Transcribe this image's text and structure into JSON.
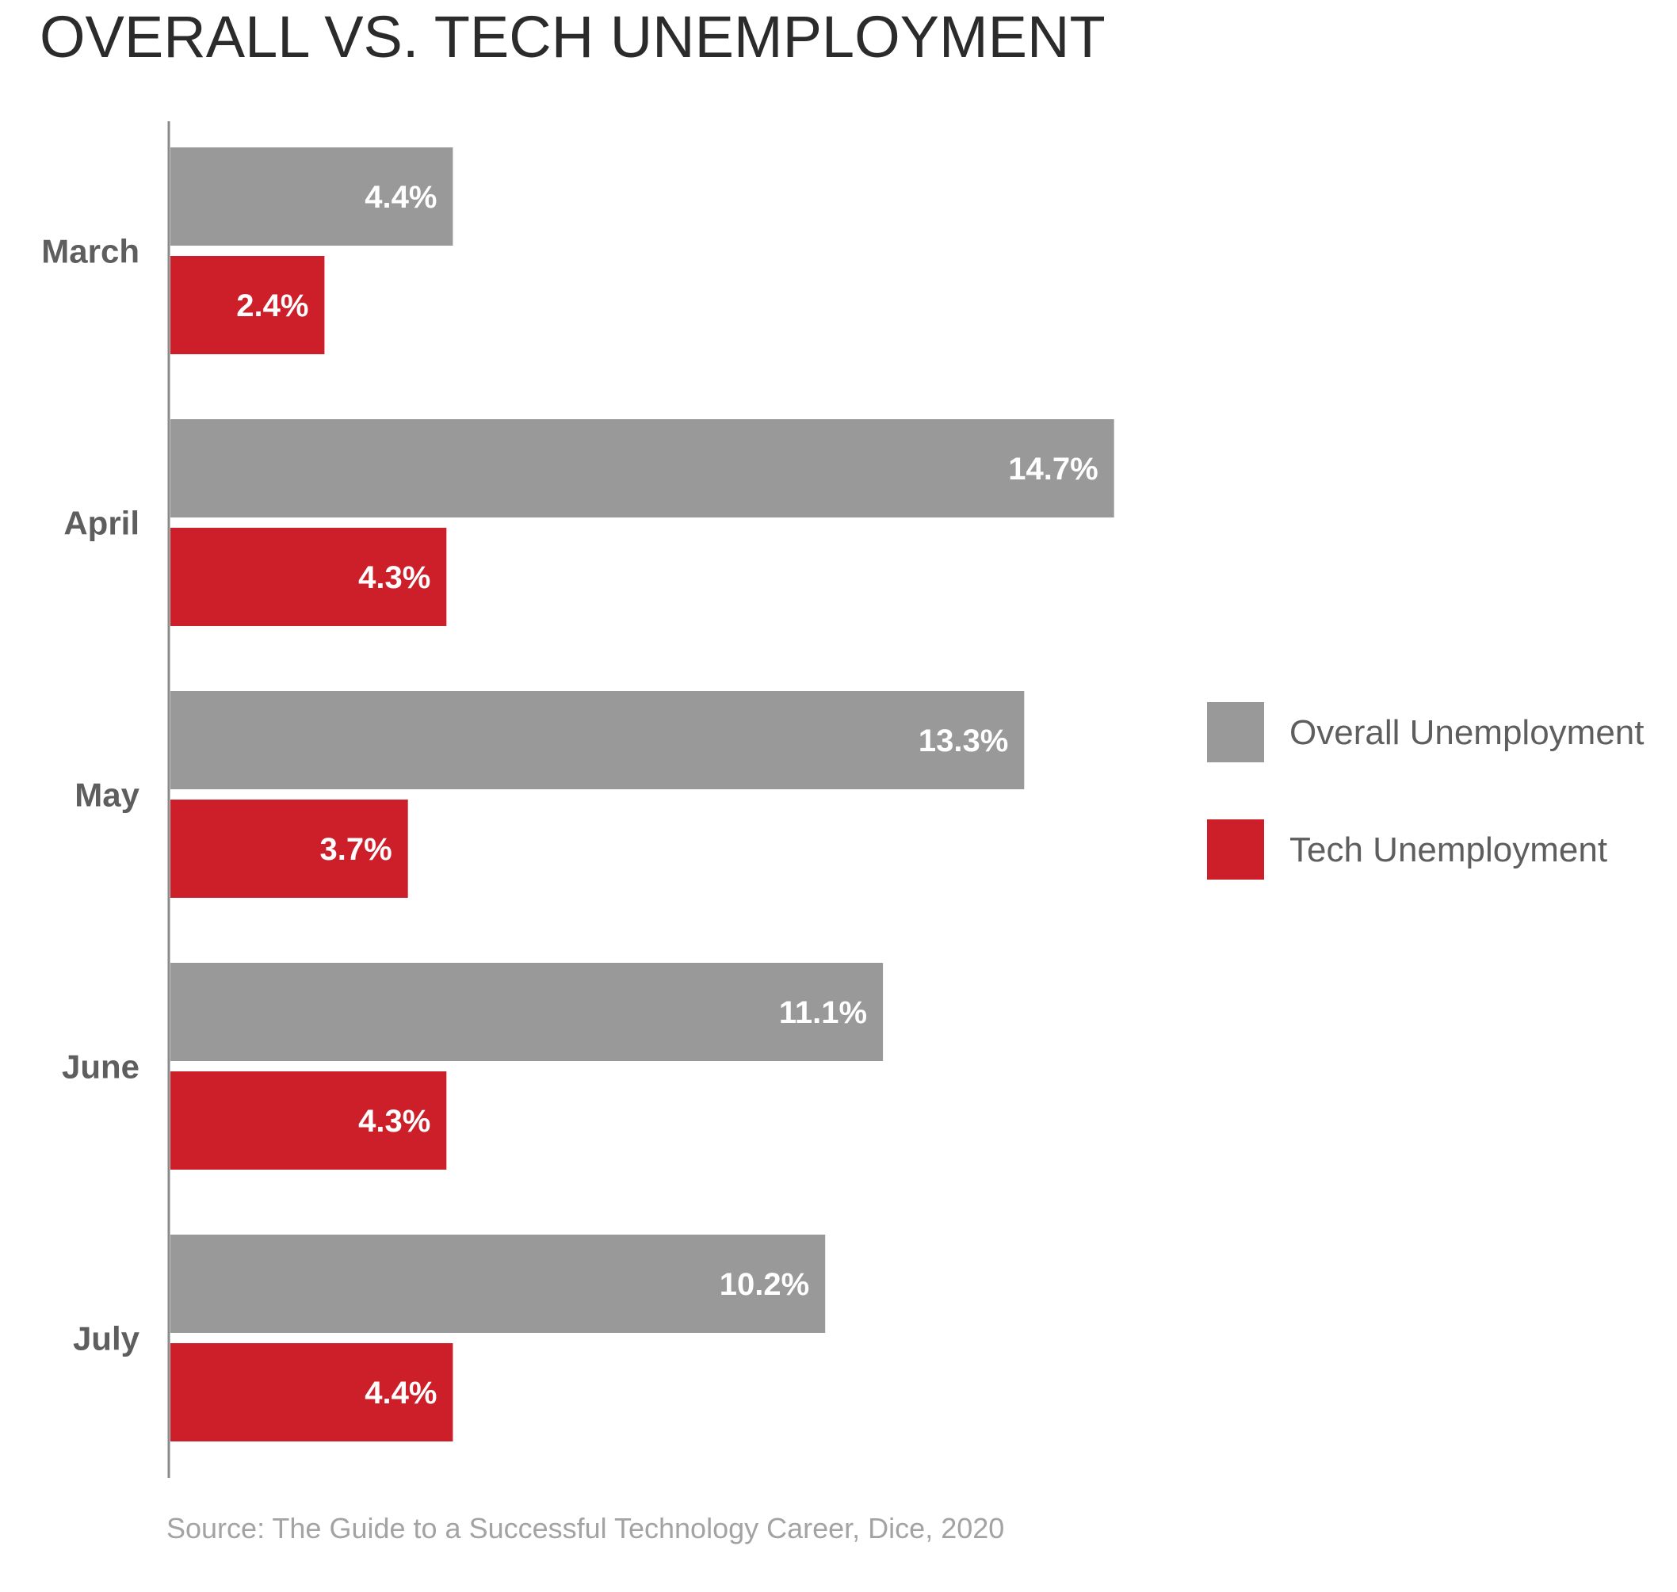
{
  "chart_data": {
    "type": "bar",
    "orientation": "horizontal",
    "title": "OVERALL VS. TECH UNEMPLOYMENT",
    "categories": [
      "March",
      "April",
      "May",
      "June",
      "July"
    ],
    "series": [
      {
        "name": "Overall Unemployment",
        "color": "#999999",
        "values": [
          4.4,
          14.7,
          13.3,
          11.1,
          10.2
        ],
        "labels": [
          "4.4%",
          "14.7%",
          "13.3%",
          "11.1%",
          "10.2%"
        ]
      },
      {
        "name": "Tech Unemployment",
        "color": "#cc1f2a",
        "values": [
          2.4,
          4.3,
          3.7,
          4.3,
          4.4
        ],
        "labels": [
          "2.4%",
          "4.3%",
          "3.7%",
          "4.3%",
          "4.4%"
        ]
      }
    ],
    "xlim": [
      0,
      16
    ],
    "grid": false,
    "legend_position": "right",
    "source": "Source: The Guide to a Successful Technology Career, Dice, 2020"
  }
}
